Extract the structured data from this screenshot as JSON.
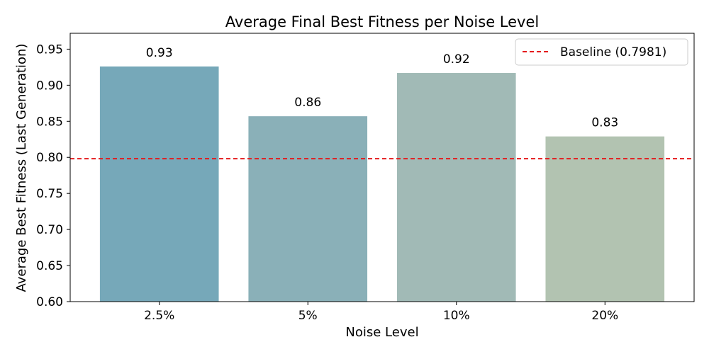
{
  "chart_data": {
    "type": "bar",
    "title": "Average Final Best Fitness per Noise Level",
    "xlabel": "Noise Level",
    "ylabel": "Average Best Fitness (Last Generation)",
    "categories": [
      "2.5%",
      "5%",
      "10%",
      "20%"
    ],
    "values": [
      0.926,
      0.857,
      0.917,
      0.829
    ],
    "data_labels": [
      "0.93",
      "0.86",
      "0.92",
      "0.83"
    ],
    "bar_colors": [
      "#76a8b9",
      "#8ab0b8",
      "#a1bab6",
      "#b2c3b1"
    ],
    "ylim": [
      0.6,
      0.972
    ],
    "yticks": [
      0.6,
      0.65,
      0.7,
      0.75,
      0.8,
      0.85,
      0.9,
      0.95
    ],
    "ytick_labels": [
      "0.60",
      "0.65",
      "0.70",
      "0.75",
      "0.80",
      "0.85",
      "0.90",
      "0.95"
    ],
    "grid": false,
    "baseline": {
      "value": 0.7981,
      "label": "Baseline (0.7981)",
      "color": "#e41a1c",
      "style": "dashed"
    },
    "legend": {
      "position": "top-right"
    }
  }
}
